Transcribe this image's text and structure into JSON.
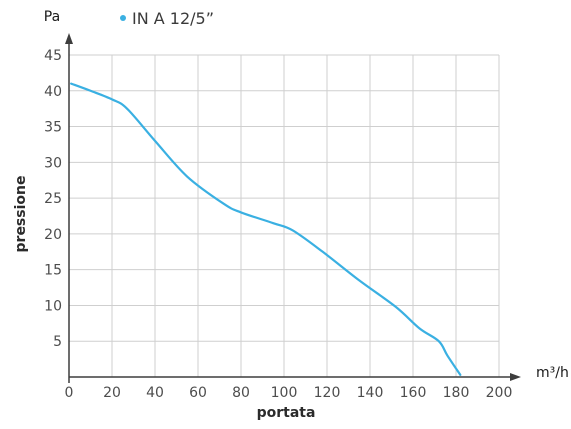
{
  "chart_data": {
    "type": "line",
    "y_unit": "Pa",
    "x_unit": "m³/h",
    "xlabel": "portata",
    "ylabel": "pressione",
    "xlim": [
      0,
      200
    ],
    "ylim": [
      0,
      45
    ],
    "x_ticks": [
      0,
      20,
      40,
      60,
      80,
      100,
      120,
      140,
      160,
      180,
      200
    ],
    "y_ticks": [
      5,
      10,
      15,
      20,
      25,
      30,
      35,
      40,
      45
    ],
    "grid": true,
    "legend_position": "top-left",
    "series": [
      {
        "name": "IN A 12/5”",
        "color": "#3ab0e2",
        "x": [
          1,
          10,
          20,
          27,
          40,
          55,
          72,
          80,
          95,
          104,
          118,
          135,
          152,
          163,
          172,
          176,
          182
        ],
        "y": [
          41,
          40,
          38.8,
          37.5,
          33,
          28,
          24.2,
          23,
          21.5,
          20.5,
          17.5,
          13.5,
          9.8,
          6.8,
          5,
          3,
          0.3
        ]
      }
    ]
  }
}
